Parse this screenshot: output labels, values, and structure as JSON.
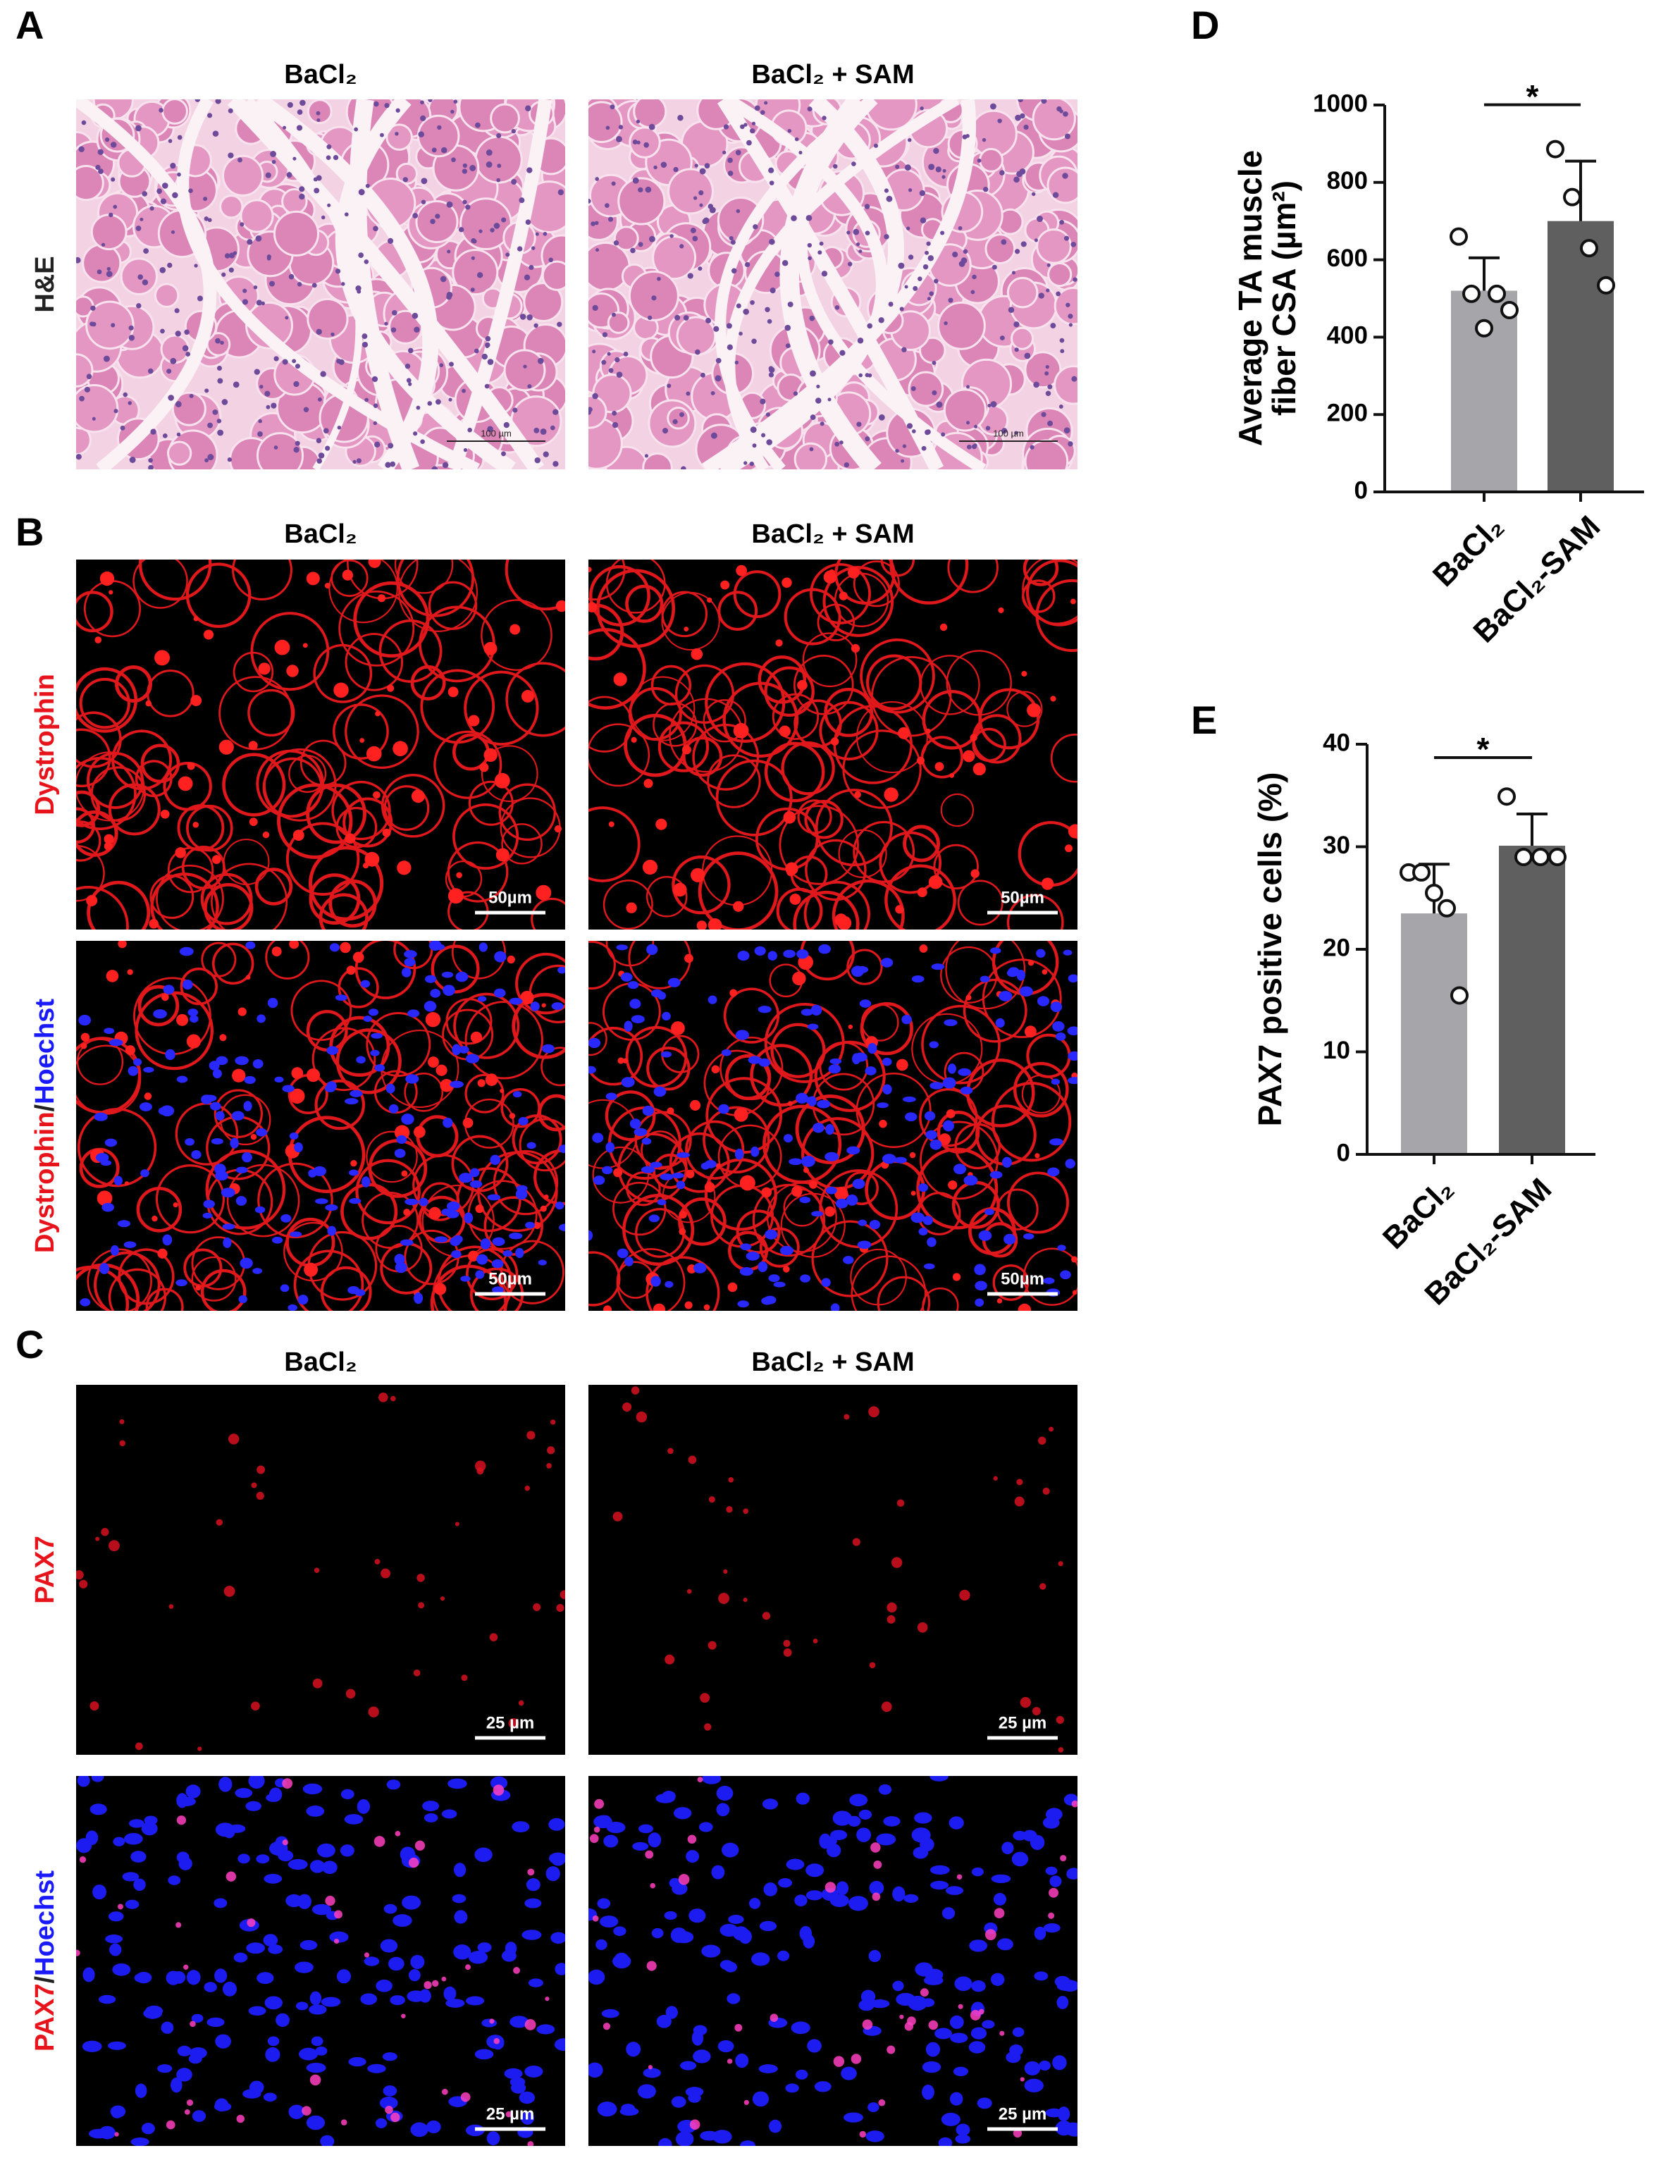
{
  "panels": [
    {
      "letter": "A",
      "columns": [
        "BaCl₂",
        "BaCl₂ + SAM"
      ],
      "rows": [
        {
          "label": [
            "H&E"
          ],
          "label_colors": [
            "#222222"
          ],
          "scale_bar": "100 µm"
        }
      ]
    },
    {
      "letter": "B",
      "columns": [
        "BaCl₂",
        "BaCl₂ + SAM"
      ],
      "rows": [
        {
          "label": [
            "Dystrophin"
          ],
          "label_colors": [
            "#e8141c"
          ],
          "scale_bar": "50µm"
        },
        {
          "label": [
            "Dystrophin",
            "/",
            "Hoechst"
          ],
          "label_colors": [
            "#e8141c",
            "#222222",
            "#1a1aff"
          ],
          "scale_bar": "50µm"
        }
      ]
    },
    {
      "letter": "C",
      "columns": [
        "BaCl₂",
        "BaCl₂ + SAM"
      ],
      "rows": [
        {
          "label": [
            "PAX7"
          ],
          "label_colors": [
            "#e8141c"
          ],
          "scale_bar": "25 µm"
        },
        {
          "label": [
            "PAX7",
            "/",
            "Hoechst"
          ],
          "label_colors": [
            "#e8141c",
            "#222222",
            "#1a1aff"
          ],
          "scale_bar": "25 µm"
        }
      ]
    }
  ],
  "chart_data": [
    {
      "type": "bar",
      "letter": "D",
      "ylabel": [
        "Average TA muscle",
        "fiber CSA (µm²)"
      ],
      "categories": [
        "BaCl₂",
        "BaCl₂-SAM"
      ],
      "values": [
        520,
        700
      ],
      "errors": [
        85,
        155
      ],
      "points": [
        [
          660,
          512,
          423,
          512,
          470
        ],
        [
          886,
          762,
          630,
          534
        ]
      ],
      "colors": [
        "#a6a6aa",
        "#5f5f5f"
      ],
      "ylim": [
        0,
        1000
      ],
      "yticks": [
        0,
        200,
        400,
        600,
        800,
        1000
      ],
      "annotation": "*"
    },
    {
      "type": "bar",
      "letter": "E",
      "ylabel": [
        "PAX7 positive cells (%)"
      ],
      "categories": [
        "BaCl₂",
        "BaCl₂-SAM"
      ],
      "values": [
        23.5,
        30.1
      ],
      "errors": [
        4.8,
        3.1
      ],
      "points": [
        [
          27.5,
          27.5,
          25.5,
          24,
          15.5
        ],
        [
          34.9,
          29,
          29,
          29
        ]
      ],
      "colors": [
        "#a6a6aa",
        "#5f5f5f"
      ],
      "ylim": [
        0,
        40
      ],
      "yticks": [
        0,
        10,
        20,
        30,
        40
      ],
      "annotation": "*"
    }
  ]
}
